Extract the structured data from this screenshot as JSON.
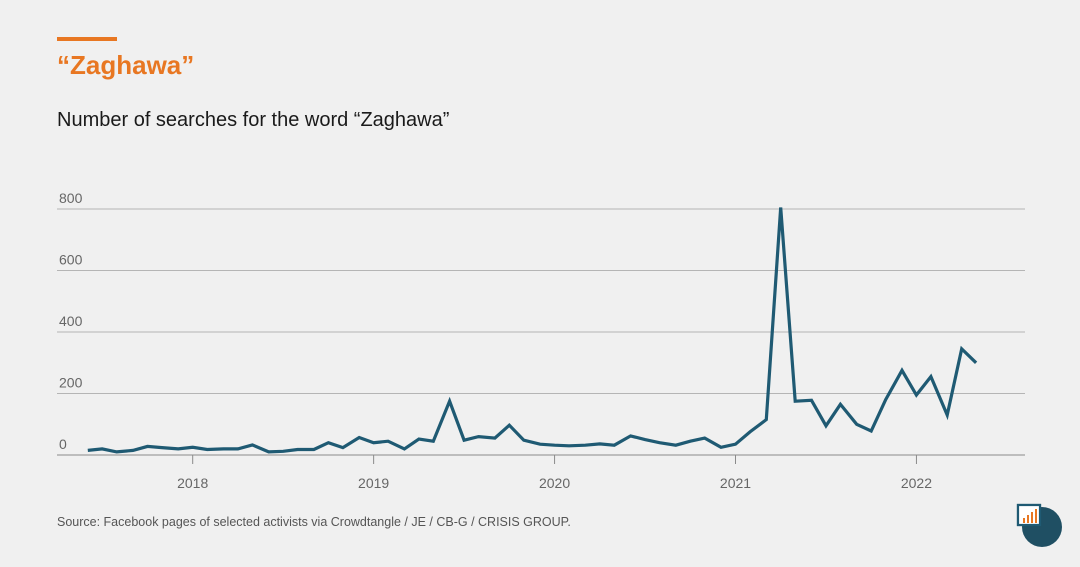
{
  "header": {
    "title": "“Zaghawa”",
    "subtitle": "Number of searches for the word “Zaghawa”"
  },
  "footer": {
    "source": "Source: Facebook pages of selected activists via Crowdtangle / JE / CB-G / CRISIS GROUP."
  },
  "colors": {
    "accent": "#e87722",
    "line": "#1f5a73",
    "grid": "#b5b5b5"
  },
  "chart_data": {
    "type": "line",
    "title": "Number of searches for the word “Zaghawa”",
    "xlabel": "",
    "ylabel": "",
    "ylim": [
      0,
      800
    ],
    "yticks": [
      0,
      200,
      400,
      600,
      800
    ],
    "xticks": [
      "2018",
      "2019",
      "2020",
      "2021",
      "2022"
    ],
    "xlim": [
      2017.25,
      2022.6
    ],
    "grid": true,
    "series": [
      {
        "x": [
          2017.42,
          2017.5,
          2017.58,
          2017.67,
          2017.75,
          2017.83,
          2017.92,
          2018.0,
          2018.08,
          2018.17,
          2018.25,
          2018.33,
          2018.42,
          2018.5,
          2018.58,
          2018.67,
          2018.75,
          2018.83,
          2018.92,
          2019.0,
          2019.08,
          2019.17,
          2019.25,
          2019.33,
          2019.42,
          2019.5,
          2019.58,
          2019.67,
          2019.75,
          2019.83,
          2019.92,
          2020.0,
          2020.08,
          2020.17,
          2020.25,
          2020.33,
          2020.42,
          2020.5,
          2020.58,
          2020.67,
          2020.75,
          2020.83,
          2020.92,
          2021.0,
          2021.08,
          2021.17,
          2021.25,
          2021.33,
          2021.42,
          2021.5,
          2021.58,
          2021.67,
          2021.75,
          2021.83,
          2021.92,
          2022.0,
          2022.08,
          2022.17,
          2022.25,
          2022.33
        ],
        "values": [
          15,
          20,
          10,
          15,
          28,
          24,
          20,
          25,
          18,
          20,
          20,
          33,
          10,
          12,
          18,
          18,
          40,
          24,
          57,
          40,
          45,
          20,
          52,
          45,
          175,
          48,
          60,
          55,
          97,
          48,
          35,
          32,
          30,
          32,
          36,
          32,
          62,
          50,
          40,
          32,
          45,
          55,
          25,
          35,
          75,
          115,
          805,
          175,
          178,
          95,
          165,
          100,
          78,
          180,
          275,
          195,
          255,
          130,
          345,
          300
        ]
      }
    ]
  }
}
